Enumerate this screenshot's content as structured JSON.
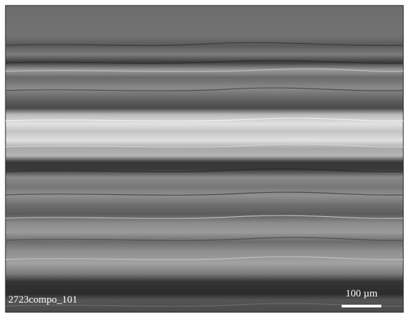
{
  "image": {
    "label": "2723compo_101",
    "scale_bar": "100 µm"
  }
}
